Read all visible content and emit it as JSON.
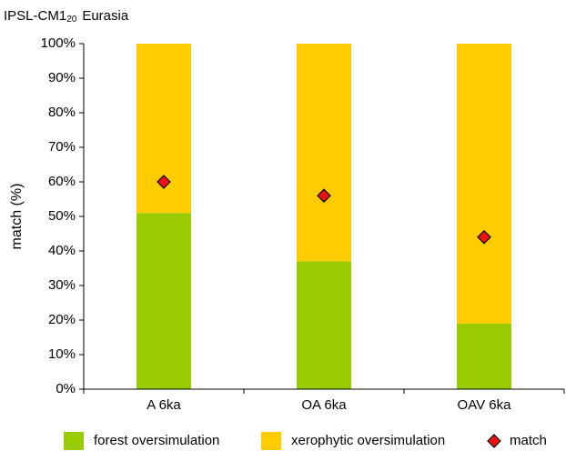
{
  "chart_data": {
    "type": "bar",
    "stacked": true,
    "title": {
      "main": "IPSL-CM1",
      "subscript": "20",
      "region": "Eurasia"
    },
    "y_label": "match (%)",
    "categories": [
      "A 6ka",
      "OA 6ka",
      "OAV 6ka"
    ],
    "series": [
      {
        "name": "forest oversimulation",
        "type": "bar",
        "color": "#99cc00",
        "values": [
          51,
          37,
          19
        ]
      },
      {
        "name": "xerophytic oversimulation",
        "type": "bar",
        "color": "#ffcc00",
        "values": [
          49,
          63,
          81
        ]
      },
      {
        "name": "match",
        "type": "diamond",
        "color": "#ee1111",
        "values": [
          60,
          56,
          44
        ]
      }
    ],
    "ylim": [
      0,
      100
    ],
    "yticks": [
      {
        "value": 0,
        "label": "0%"
      },
      {
        "value": 10,
        "label": "10%"
      },
      {
        "value": 20,
        "label": "20%"
      },
      {
        "value": 30,
        "label": "30%"
      },
      {
        "value": 40,
        "label": "40%"
      },
      {
        "value": 50,
        "label": "50%"
      },
      {
        "value": 60,
        "label": "60%"
      },
      {
        "value": 70,
        "label": "70%"
      },
      {
        "value": 80,
        "label": "80%"
      },
      {
        "value": 90,
        "label": "90%"
      },
      {
        "value": 100,
        "label": "100%"
      }
    ],
    "grid": false
  }
}
